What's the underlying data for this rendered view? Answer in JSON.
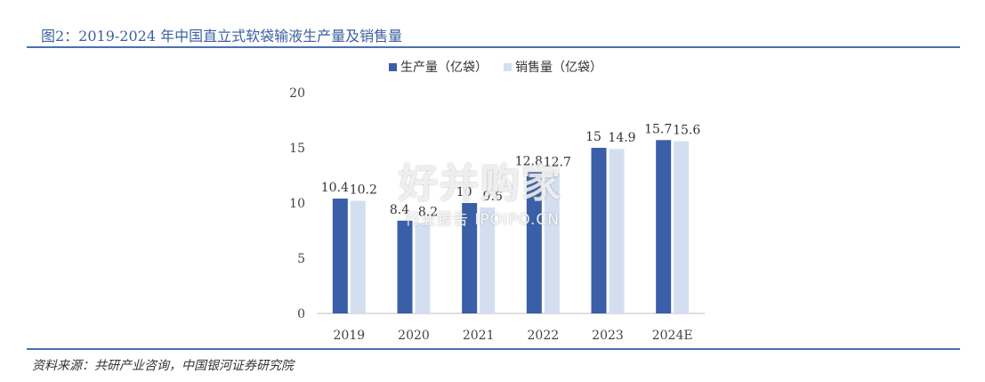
{
  "figure": {
    "title": "图2：2019-2024 年中国直立式软袋输液生产量及销售量",
    "source": "资料来源：共研产业咨询，中国银河证券研究院"
  },
  "watermark": {
    "main": "好并购家",
    "sub": "行业报告 IPOIPO.CN"
  },
  "colors": {
    "production": "#3a5ea8",
    "sales": "#d3dff1",
    "axis": "#bfbfbf",
    "rule": "#4a70b0",
    "title": "#3b5fa0"
  },
  "chart_data": {
    "type": "bar",
    "categories": [
      "2019",
      "2020",
      "2021",
      "2022",
      "2023",
      "2024E"
    ],
    "series": [
      {
        "name": "生产量（亿袋）",
        "values": [
          10.4,
          8.4,
          10,
          12.8,
          15,
          15.7
        ],
        "color": "#3a5ea8"
      },
      {
        "name": "销售量（亿袋）",
        "values": [
          10.2,
          8.2,
          9.6,
          12.7,
          14.9,
          15.6
        ],
        "color": "#d3dff1"
      }
    ],
    "ylim": [
      0,
      20
    ],
    "yticks": [
      0,
      5,
      10,
      15,
      20
    ],
    "legend_position": "top",
    "grid": false,
    "xlabel": "",
    "ylabel": ""
  }
}
